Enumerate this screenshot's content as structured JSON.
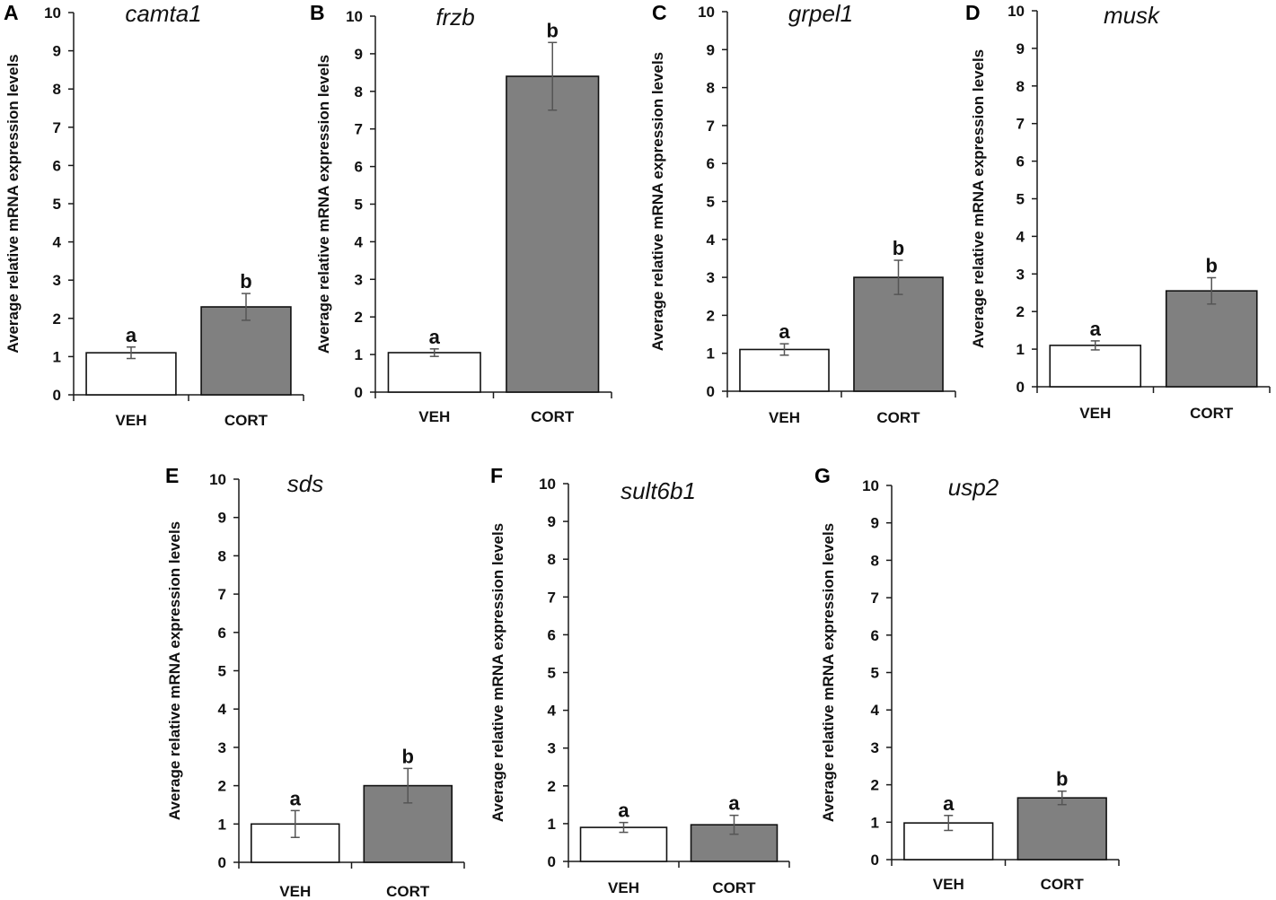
{
  "chart_data": [
    {
      "type": "bar",
      "panel": "A",
      "title": "camta1",
      "ylabel": "Average relative mRNA expression levels",
      "categories": [
        "VEH",
        "CORT"
      ],
      "values": [
        1.1,
        2.3
      ],
      "errors": [
        0.15,
        0.35
      ],
      "significance": [
        "a",
        "b"
      ],
      "ylim": [
        0,
        10
      ],
      "yticks": [
        0,
        1,
        2,
        3,
        4,
        5,
        6,
        7,
        8,
        9,
        10
      ],
      "colors": [
        "#ffffff",
        "#808080"
      ]
    },
    {
      "type": "bar",
      "panel": "B",
      "title": "frzb",
      "ylabel": "Average relative mRNA expression levels",
      "categories": [
        "VEH",
        "CORT"
      ],
      "values": [
        1.05,
        8.4
      ],
      "errors": [
        0.1,
        0.9
      ],
      "significance": [
        "a",
        "b"
      ],
      "ylim": [
        0,
        10
      ],
      "yticks": [
        0,
        1,
        2,
        3,
        4,
        5,
        6,
        7,
        8,
        9,
        10
      ],
      "colors": [
        "#ffffff",
        "#808080"
      ]
    },
    {
      "type": "bar",
      "panel": "C",
      "title": "grpel1",
      "ylabel": "Average relative mRNA expression levels",
      "categories": [
        "VEH",
        "CORT"
      ],
      "values": [
        1.1,
        3.0
      ],
      "errors": [
        0.15,
        0.45
      ],
      "significance": [
        "a",
        "b"
      ],
      "ylim": [
        0,
        10
      ],
      "yticks": [
        0,
        1,
        2,
        3,
        4,
        5,
        6,
        7,
        8,
        9,
        10
      ],
      "colors": [
        "#ffffff",
        "#808080"
      ]
    },
    {
      "type": "bar",
      "panel": "D",
      "title": "musk",
      "ylabel": "Average relative mRNA expression levels",
      "categories": [
        "VEH",
        "CORT"
      ],
      "values": [
        1.1,
        2.55
      ],
      "errors": [
        0.12,
        0.35
      ],
      "significance": [
        "a",
        "b"
      ],
      "ylim": [
        0,
        10
      ],
      "yticks": [
        0,
        1,
        2,
        3,
        4,
        5,
        6,
        7,
        8,
        9,
        10
      ],
      "colors": [
        "#ffffff",
        "#808080"
      ]
    },
    {
      "type": "bar",
      "panel": "E",
      "title": "sds",
      "ylabel": "Average relative mRNA expression levels",
      "categories": [
        "VEH",
        "CORT"
      ],
      "values": [
        1.0,
        2.0
      ],
      "errors": [
        0.35,
        0.45
      ],
      "significance": [
        "a",
        "b"
      ],
      "ylim": [
        0,
        10
      ],
      "yticks": [
        0,
        1,
        2,
        3,
        4,
        5,
        6,
        7,
        8,
        9,
        10
      ],
      "colors": [
        "#ffffff",
        "#808080"
      ]
    },
    {
      "type": "bar",
      "panel": "F",
      "title": "sult6b1",
      "ylabel": "Average relative mRNA expression levels",
      "categories": [
        "VEH",
        "CORT"
      ],
      "values": [
        0.9,
        0.97
      ],
      "errors": [
        0.13,
        0.25
      ],
      "significance": [
        "a",
        "a"
      ],
      "ylim": [
        0,
        10
      ],
      "yticks": [
        0,
        1,
        2,
        3,
        4,
        5,
        6,
        7,
        8,
        9,
        10
      ],
      "colors": [
        "#ffffff",
        "#808080"
      ]
    },
    {
      "type": "bar",
      "panel": "G",
      "title": "usp2",
      "ylabel": "Average relative mRNA expression levels",
      "categories": [
        "VEH",
        "CORT"
      ],
      "values": [
        0.98,
        1.65
      ],
      "errors": [
        0.2,
        0.18
      ],
      "significance": [
        "a",
        "b"
      ],
      "ylim": [
        0,
        10
      ],
      "yticks": [
        0,
        1,
        2,
        3,
        4,
        5,
        6,
        7,
        8,
        9,
        10
      ],
      "colors": [
        "#ffffff",
        "#808080"
      ]
    }
  ]
}
